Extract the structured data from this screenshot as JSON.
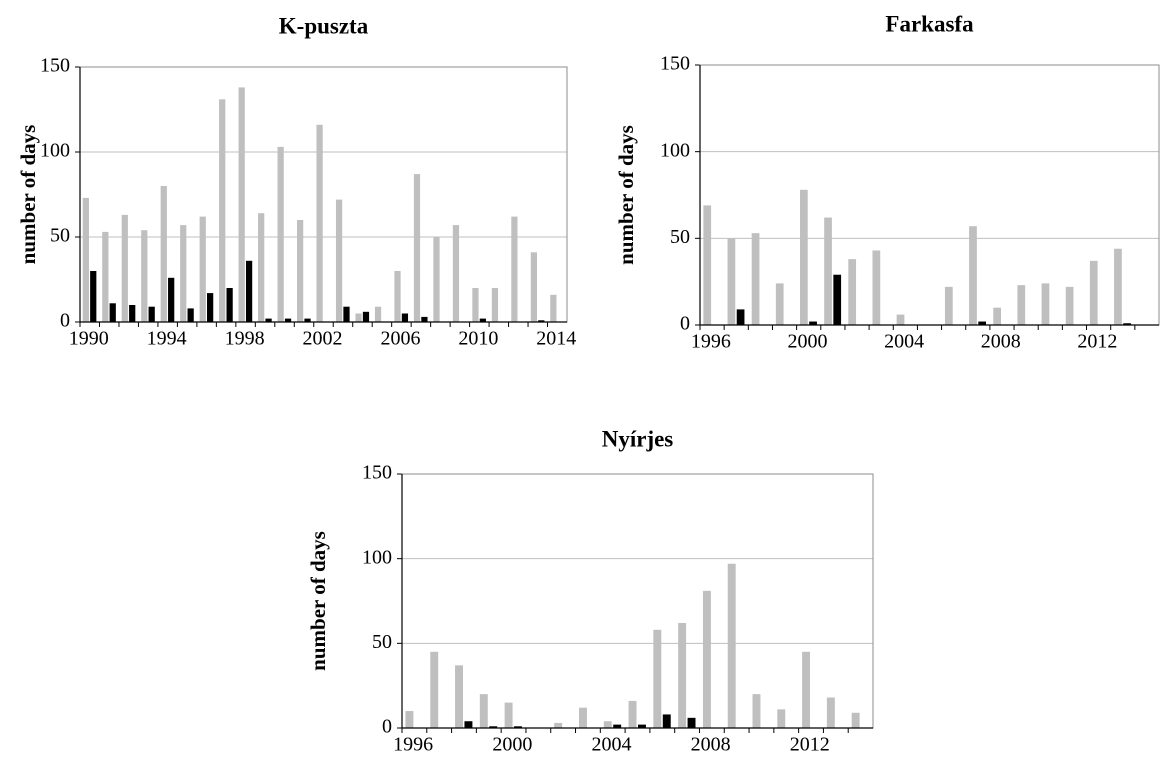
{
  "chart_data": [
    {
      "type": "bar",
      "title": "K-puszta",
      "ylabel": "number of days",
      "categories": [
        "1990",
        null,
        null,
        null,
        "1994",
        null,
        null,
        null,
        "1998",
        null,
        null,
        null,
        "2002",
        null,
        null,
        null,
        "2006",
        null,
        null,
        null,
        "2010",
        null,
        null,
        null,
        "2014"
      ],
      "series": [
        {
          "color": "#bfbfbf",
          "values": [
            73,
            53,
            63,
            54,
            80,
            57,
            62,
            131,
            138,
            64,
            103,
            60,
            116,
            72,
            5,
            9,
            30,
            87,
            50,
            57,
            20,
            20,
            62,
            41,
            16
          ]
        },
        {
          "color": "#000000",
          "values": [
            30,
            11,
            10,
            9,
            26,
            8,
            17,
            20,
            36,
            2,
            2,
            2,
            0,
            9,
            6,
            0,
            5,
            3,
            0,
            0,
            2,
            0,
            0,
            1,
            0
          ]
        }
      ],
      "ylim": [
        0,
        150
      ],
      "yticks": [
        0,
        50,
        100,
        150
      ],
      "grid": true
    },
    {
      "type": "bar",
      "title": "Farkasfa",
      "ylabel": "number of days",
      "categories": [
        "1996",
        null,
        null,
        null,
        "2000",
        null,
        null,
        null,
        "2004",
        null,
        null,
        null,
        "2008",
        null,
        null,
        null,
        "2012",
        null,
        null
      ],
      "series": [
        {
          "color": "#bfbfbf",
          "values": [
            69,
            50,
            53,
            24,
            78,
            62,
            38,
            43,
            6,
            0,
            22,
            57,
            10,
            23,
            24,
            22,
            37,
            44,
            0
          ]
        },
        {
          "color": "#000000",
          "values": [
            0,
            9,
            0,
            0,
            2,
            29,
            0,
            0,
            0,
            0,
            0,
            2,
            0,
            0,
            0,
            0,
            0,
            1,
            0
          ]
        }
      ],
      "ylim": [
        0,
        150
      ],
      "yticks": [
        0,
        50,
        100,
        150
      ],
      "grid": true
    },
    {
      "type": "bar",
      "title": "Nyírjes",
      "ylabel": "number of days",
      "categories": [
        "1996",
        null,
        null,
        null,
        "2000",
        null,
        null,
        null,
        "2004",
        null,
        null,
        null,
        "2008",
        null,
        null,
        null,
        "2012",
        null,
        null
      ],
      "series": [
        {
          "color": "#bfbfbf",
          "values": [
            10,
            45,
            37,
            20,
            15,
            0,
            3,
            12,
            4,
            16,
            58,
            62,
            81,
            97,
            20,
            11,
            45,
            18,
            9
          ]
        },
        {
          "color": "#000000",
          "values": [
            0,
            0,
            4,
            1,
            1,
            0,
            0,
            0,
            2,
            2,
            8,
            6,
            0,
            0,
            0,
            0,
            0,
            0,
            0
          ]
        }
      ],
      "ylim": [
        0,
        150
      ],
      "yticks": [
        0,
        50,
        100,
        150
      ],
      "grid": true
    }
  ]
}
